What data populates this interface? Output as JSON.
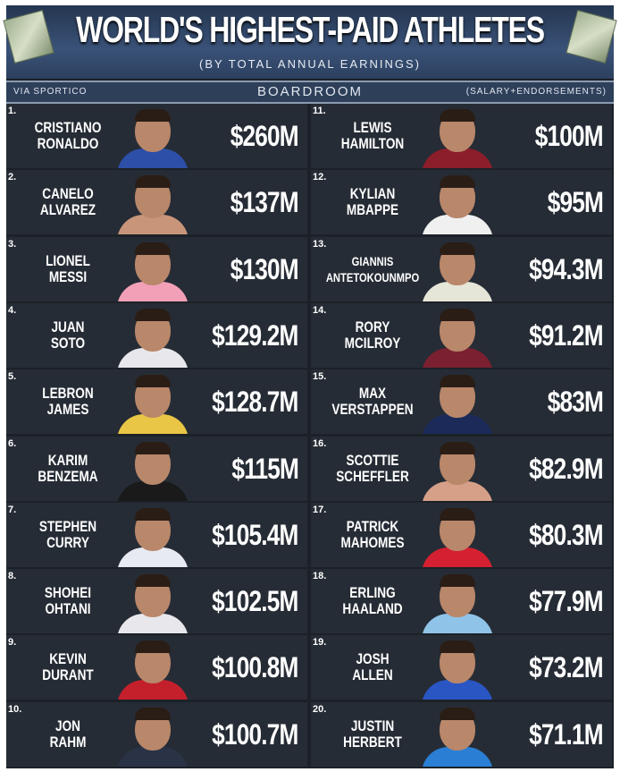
{
  "header": {
    "title": "WORLD'S HIGHEST-PAID ATHLETES",
    "subtitle": "(BY TOTAL ANNUAL EARNINGS)",
    "source": "VIA SPORTICO",
    "brand": "BOARDROOM",
    "note": "(SALARY+ENDORSEMENTS)"
  },
  "colors": {
    "card": "#262c35",
    "header": "#2e3f5a",
    "text": "#ffffff"
  },
  "athletes": [
    {
      "rank": "1.",
      "first": "CRISTIANO",
      "last": "RONALDO",
      "earnings": "$260M",
      "kit": "#2d4fa8"
    },
    {
      "rank": "2.",
      "first": "CANELO",
      "last": "ALVAREZ",
      "earnings": "$137M",
      "kit": "#c9957a"
    },
    {
      "rank": "3.",
      "first": "LIONEL",
      "last": "MESSI",
      "earnings": "$130M",
      "kit": "#f2a0b8"
    },
    {
      "rank": "4.",
      "first": "JUAN",
      "last": "SOTO",
      "earnings": "$129.2M",
      "kit": "#e8e8ec"
    },
    {
      "rank": "5.",
      "first": "LEBRON",
      "last": "JAMES",
      "earnings": "$128.7M",
      "kit": "#e9c646"
    },
    {
      "rank": "6.",
      "first": "KARIM",
      "last": "BENZEMA",
      "earnings": "$115M",
      "kit": "#1a1a1a"
    },
    {
      "rank": "7.",
      "first": "STEPHEN",
      "last": "CURRY",
      "earnings": "$105.4M",
      "kit": "#e8eaf2"
    },
    {
      "rank": "8.",
      "first": "SHOHEI",
      "last": "OHTANI",
      "earnings": "$102.5M",
      "kit": "#e8e8ec"
    },
    {
      "rank": "9.",
      "first": "KEVIN",
      "last": "DURANT",
      "earnings": "$100.8M",
      "kit": "#c4202c"
    },
    {
      "rank": "10.",
      "first": "JON",
      "last": "RAHM",
      "earnings": "$100.7M",
      "kit": "#2a3346"
    },
    {
      "rank": "11.",
      "first": "LEWIS",
      "last": "HAMILTON",
      "earnings": "$100M",
      "kit": "#8c1d2a"
    },
    {
      "rank": "12.",
      "first": "KYLIAN",
      "last": "MBAPPE",
      "earnings": "$95M",
      "kit": "#f0f0f0"
    },
    {
      "rank": "13.",
      "first": "GIANNIS",
      "last": "ANTETOKOUNMPO",
      "earnings": "$94.3M",
      "kit": "#e6e6d8"
    },
    {
      "rank": "14.",
      "first": "RORY",
      "last": "MCILROY",
      "earnings": "$91.2M",
      "kit": "#7a2030"
    },
    {
      "rank": "15.",
      "first": "MAX",
      "last": "VERSTAPPEN",
      "earnings": "$83M",
      "kit": "#1c2a5a"
    },
    {
      "rank": "16.",
      "first": "SCOTTIE",
      "last": "SCHEFFLER",
      "earnings": "$82.9M",
      "kit": "#d6a088"
    },
    {
      "rank": "17.",
      "first": "PATRICK",
      "last": "MAHOMES",
      "earnings": "$80.3M",
      "kit": "#d42030"
    },
    {
      "rank": "18.",
      "first": "ERLING",
      "last": "HAALAND",
      "earnings": "$77.9M",
      "kit": "#8fc4e8"
    },
    {
      "rank": "19.",
      "first": "JOSH",
      "last": "ALLEN",
      "earnings": "$73.2M",
      "kit": "#2a56c4"
    },
    {
      "rank": "20.",
      "first": "JUSTIN",
      "last": "HERBERT",
      "earnings": "$71.1M",
      "kit": "#2a7fd4"
    }
  ]
}
